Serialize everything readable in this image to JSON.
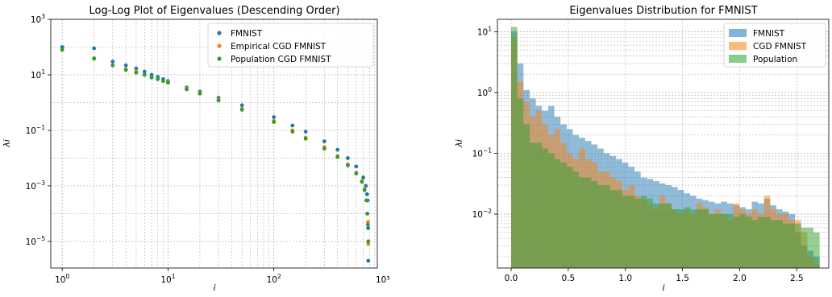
{
  "chart_data": [
    {
      "type": "scatter",
      "title": "Log-Log Plot of Eigenvalues (Descending Order)",
      "xlabel": "i",
      "ylabel": "λi",
      "xscale": "log",
      "yscale": "log",
      "xlim": [
        0.78,
        950
      ],
      "ylim": [
        1.1e-06,
        1000
      ],
      "xticks": [
        {
          "value": 1,
          "base": "10",
          "exp": "0"
        },
        {
          "value": 10,
          "base": "10",
          "exp": "1"
        },
        {
          "value": 100,
          "base": "10",
          "exp": "2"
        }
      ],
      "xtick_partial": {
        "value": 1000,
        "label": "10³"
      },
      "yticks": [
        {
          "value": 1e-05,
          "base": "10",
          "exp": "−5"
        },
        {
          "value": 0.001,
          "base": "10",
          "exp": "−3"
        },
        {
          "value": 0.1,
          "base": "10",
          "exp": "−1"
        },
        {
          "value": 10,
          "base": "10",
          "exp": "1"
        },
        {
          "value": 1000,
          "base": "10",
          "exp": "3"
        }
      ],
      "grid": true,
      "legend_position": "top-right",
      "series": [
        {
          "name": "FMNIST",
          "color": "#1f77b4",
          "points": [
            [
              1,
              100
            ],
            [
              2,
              90
            ],
            [
              3,
              30
            ],
            [
              4,
              22
            ],
            [
              5,
              17
            ],
            [
              6,
              13
            ],
            [
              7,
              10
            ],
            [
              8,
              8.5
            ],
            [
              9,
              7
            ],
            [
              10,
              6
            ],
            [
              15,
              3.5
            ],
            [
              20,
              2.5
            ],
            [
              30,
              1.5
            ],
            [
              50,
              0.8
            ],
            [
              100,
              0.3
            ],
            [
              150,
              0.15
            ],
            [
              200,
              0.09
            ],
            [
              300,
              0.04
            ],
            [
              400,
              0.02
            ],
            [
              500,
              0.01
            ],
            [
              600,
              0.005
            ],
            [
              700,
              0.002
            ],
            [
              740,
              0.001
            ],
            [
              760,
              0.0005
            ],
            [
              770,
              0.0003
            ],
            [
              778,
              3e-05
            ],
            [
              780,
              2e-06
            ]
          ]
        },
        {
          "name": "Empirical CGD FMNIST",
          "color": "#ff7f0e",
          "points": [
            [
              1,
              80
            ],
            [
              2,
              40
            ],
            [
              3,
              22
            ],
            [
              4,
              16
            ],
            [
              5,
              13
            ],
            [
              6,
              10
            ],
            [
              7,
              8
            ],
            [
              8,
              7
            ],
            [
              9,
              6
            ],
            [
              10,
              5.5
            ],
            [
              15,
              3.2
            ],
            [
              20,
              2.2
            ],
            [
              30,
              1.3
            ],
            [
              50,
              0.6
            ],
            [
              100,
              0.22
            ],
            [
              150,
              0.1
            ],
            [
              200,
              0.055
            ],
            [
              300,
              0.025
            ],
            [
              400,
              0.012
            ],
            [
              500,
              0.006
            ],
            [
              600,
              0.003
            ],
            [
              680,
              0.0015
            ],
            [
              720,
              0.0008
            ],
            [
              750,
              0.0003
            ],
            [
              765,
              0.0001
            ],
            [
              775,
              5e-05
            ],
            [
              780,
              8e-06
            ]
          ]
        },
        {
          "name": "Population CGD FMNIST",
          "color": "#2ca02c",
          "points": [
            [
              1,
              80
            ],
            [
              2,
              38
            ],
            [
              3,
              22
            ],
            [
              4,
              15
            ],
            [
              5,
              12
            ],
            [
              6,
              10
            ],
            [
              7,
              8
            ],
            [
              8,
              7
            ],
            [
              9,
              6
            ],
            [
              10,
              5.2
            ],
            [
              15,
              3
            ],
            [
              20,
              2.1
            ],
            [
              30,
              1.2
            ],
            [
              50,
              0.55
            ],
            [
              100,
              0.2
            ],
            [
              150,
              0.09
            ],
            [
              200,
              0.05
            ],
            [
              300,
              0.022
            ],
            [
              400,
              0.011
            ],
            [
              500,
              0.0055
            ],
            [
              600,
              0.0028
            ],
            [
              680,
              0.0014
            ],
            [
              720,
              0.0007
            ],
            [
              750,
              0.0003
            ],
            [
              765,
              0.0001
            ],
            [
              775,
              4e-05
            ],
            [
              780,
              1e-05
            ]
          ]
        }
      ]
    },
    {
      "type": "bar",
      "title": "Eigenvalues Distribution for FMNIST",
      "xlabel": "i",
      "ylabel": "λi",
      "yscale": "log",
      "xlim": [
        -0.12,
        2.78
      ],
      "ylim": [
        0.0013,
        16
      ],
      "xticks": [
        {
          "value": 0,
          "label": "0.0"
        },
        {
          "value": 0.5,
          "label": "0.5"
        },
        {
          "value": 1,
          "label": "1.0"
        },
        {
          "value": 1.5,
          "label": "1.5"
        },
        {
          "value": 2,
          "label": "2.0"
        },
        {
          "value": 2.5,
          "label": "2.5"
        }
      ],
      "yticks": [
        {
          "value": 0.01,
          "base": "10",
          "exp": "−2"
        },
        {
          "value": 0.1,
          "base": "10",
          "exp": "−1"
        },
        {
          "value": 1,
          "base": "10",
          "exp": "0"
        },
        {
          "value": 10,
          "base": "10",
          "exp": "1"
        }
      ],
      "bin_width": 0.054,
      "grid": true,
      "legend_position": "top-right",
      "series": [
        {
          "name": "FMNIST",
          "color": "#1f77b4",
          "values": [
            10,
            3,
            1.1,
            0.8,
            0.6,
            0.5,
            0.6,
            0.4,
            0.3,
            0.25,
            0.2,
            0.18,
            0.16,
            0.14,
            0.12,
            0.1,
            0.09,
            0.08,
            0.07,
            0.06,
            0.05,
            0.04,
            0.038,
            0.035,
            0.032,
            0.03,
            0.028,
            0.025,
            0.022,
            0.02,
            0.018,
            0.017,
            0.016,
            0.015,
            0.016,
            0.015,
            0.014,
            0.013,
            0.012,
            0.016,
            0.015,
            0.018,
            0.014,
            0.012,
            0.011,
            0.01,
            0.005,
            0.003,
            0.0025,
            0.002
          ]
        },
        {
          "name": "CGD FMNIST",
          "color": "#ff7f0e",
          "values": [
            8,
            1.5,
            0.7,
            0.4,
            0.5,
            0.3,
            0.2,
            0.25,
            0.15,
            0.1,
            0.08,
            0.12,
            0.08,
            0.07,
            0.05,
            0.05,
            0.04,
            0.035,
            0.025,
            0.03,
            0.02,
            0.018,
            0.015,
            0.012,
            0.02,
            0.015,
            0.012,
            0.01,
            0.012,
            0.01,
            0.015,
            0.013,
            0.01,
            0.012,
            0.01,
            0.008,
            0.015,
            0.012,
            0.01,
            0.012,
            0.01,
            0.02,
            0.012,
            0.01,
            0.01,
            0.008,
            0.008,
            0.005,
            0.002,
            0.0015
          ]
        },
        {
          "name": "Population",
          "color": "#2ca02c",
          "values": [
            12,
            0.8,
            0.3,
            0.15,
            0.15,
            0.12,
            0.1,
            0.08,
            0.07,
            0.06,
            0.05,
            0.04,
            0.04,
            0.035,
            0.03,
            0.03,
            0.025,
            0.025,
            0.02,
            0.02,
            0.018,
            0.02,
            0.018,
            0.015,
            0.015,
            0.015,
            0.012,
            0.012,
            0.013,
            0.012,
            0.012,
            0.012,
            0.01,
            0.01,
            0.01,
            0.01,
            0.009,
            0.01,
            0.009,
            0.008,
            0.009,
            0.009,
            0.008,
            0.008,
            0.007,
            0.007,
            0.007,
            0.006,
            0.006,
            0.005
          ]
        }
      ]
    }
  ]
}
